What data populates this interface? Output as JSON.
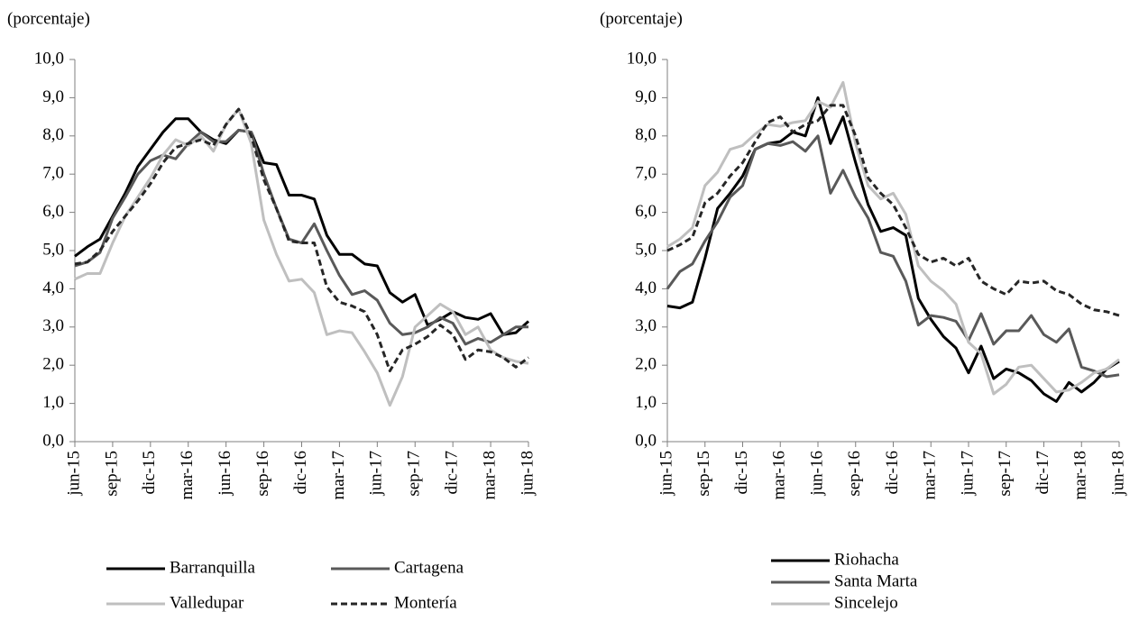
{
  "chart_data": [
    {
      "type": "line",
      "ylabel": "(porcentaje)",
      "categories": [
        "jun-15",
        null,
        null,
        "sep-15",
        null,
        null,
        "dic-15",
        null,
        null,
        "mar-16",
        null,
        null,
        "jun-16",
        null,
        null,
        "sep-16",
        null,
        null,
        "dic-16",
        null,
        null,
        "mar-17",
        null,
        null,
        "jun-17",
        null,
        null,
        "sep-17",
        null,
        null,
        "dic-17",
        null,
        null,
        "mar-18",
        null,
        null,
        "jun-18"
      ],
      "ylim": [
        0,
        10
      ],
      "yticks": [
        {
          "value": 0,
          "label": "0,0"
        },
        {
          "value": 1,
          "label": "1,0"
        },
        {
          "value": 2,
          "label": "2,0"
        },
        {
          "value": 3,
          "label": "3,0"
        },
        {
          "value": 4,
          "label": "4,0"
        },
        {
          "value": 5,
          "label": "5,0"
        },
        {
          "value": 6,
          "label": "6,0"
        },
        {
          "value": 7,
          "label": "7,0"
        },
        {
          "value": 8,
          "label": "8,0"
        },
        {
          "value": 9,
          "label": "9,0"
        },
        {
          "value": 10,
          "label": "10,0"
        }
      ],
      "series": [
        {
          "name": "Barranquilla",
          "color": "#000000",
          "style": "solid",
          "values": [
            4.85,
            5.1,
            5.3,
            5.9,
            6.5,
            7.2,
            7.65,
            8.1,
            8.45,
            8.45,
            8.1,
            7.9,
            7.8,
            8.15,
            8.1,
            7.3,
            7.25,
            6.45,
            6.45,
            6.35,
            5.4,
            4.9,
            4.9,
            4.65,
            4.6,
            3.9,
            3.65,
            3.85,
            3.05,
            3.2,
            3.4,
            3.25,
            3.2,
            3.35,
            2.8,
            2.85,
            3.15
          ]
        },
        {
          "name": "Cartagena",
          "color": "#595959",
          "style": "solid",
          "values": [
            4.6,
            4.7,
            4.95,
            5.85,
            6.4,
            7.0,
            7.35,
            7.5,
            7.4,
            7.8,
            8.1,
            7.85,
            7.85,
            8.15,
            8.1,
            7.0,
            6.1,
            5.3,
            5.2,
            5.7,
            5.0,
            4.35,
            3.85,
            3.95,
            3.7,
            3.1,
            2.8,
            2.85,
            3.0,
            3.25,
            3.1,
            2.55,
            2.7,
            2.6,
            2.8,
            3.0,
            3.0
          ]
        },
        {
          "name": "Valledupar",
          "color": "#bfbfbf",
          "style": "solid",
          "values": [
            4.25,
            4.4,
            4.4,
            5.2,
            5.9,
            6.4,
            6.9,
            7.5,
            7.9,
            7.75,
            8.0,
            7.6,
            8.3,
            8.7,
            7.8,
            5.8,
            4.9,
            4.2,
            4.25,
            3.9,
            2.8,
            2.9,
            2.85,
            2.35,
            1.8,
            0.95,
            1.7,
            3.0,
            3.3,
            3.6,
            3.4,
            2.8,
            3.0,
            2.4,
            2.2,
            2.1,
            2.05
          ]
        },
        {
          "name": "Montería",
          "color": "#262626",
          "style": "dashed",
          "values": [
            4.65,
            4.7,
            5.0,
            5.5,
            5.9,
            6.3,
            6.75,
            7.3,
            7.7,
            7.8,
            7.9,
            7.75,
            8.3,
            8.7,
            8.0,
            6.85,
            6.1,
            5.25,
            5.2,
            5.2,
            4.05,
            3.65,
            3.55,
            3.4,
            2.8,
            1.85,
            2.4,
            2.55,
            2.75,
            3.05,
            2.8,
            2.15,
            2.4,
            2.35,
            2.2,
            1.95,
            2.2
          ]
        }
      ]
    },
    {
      "type": "line",
      "ylabel": "(porcentaje)",
      "categories": [
        "jun-15",
        null,
        null,
        "sep-15",
        null,
        null,
        "dic-15",
        null,
        null,
        "mar-16",
        null,
        null,
        "jun-16",
        null,
        null,
        "sep-16",
        null,
        null,
        "dic-16",
        null,
        null,
        "mar-17",
        null,
        null,
        "jun-17",
        null,
        null,
        "sep-17",
        null,
        null,
        "dic-17",
        null,
        null,
        "mar-18",
        null,
        null,
        "jun-18"
      ],
      "ylim": [
        0,
        10
      ],
      "yticks": [
        {
          "value": 0,
          "label": "0,0"
        },
        {
          "value": 1,
          "label": "1,0"
        },
        {
          "value": 2,
          "label": "2,0"
        },
        {
          "value": 3,
          "label": "3,0"
        },
        {
          "value": 4,
          "label": "4,0"
        },
        {
          "value": 5,
          "label": "5,0"
        },
        {
          "value": 6,
          "label": "6,0"
        },
        {
          "value": 7,
          "label": "7,0"
        },
        {
          "value": 8,
          "label": "8,0"
        },
        {
          "value": 9,
          "label": "9,0"
        },
        {
          "value": 10,
          "label": "10,0"
        }
      ],
      "series": [
        {
          "name": "Riohacha",
          "color": "#000000",
          "style": "solid",
          "values": [
            3.55,
            3.5,
            3.65,
            4.8,
            6.1,
            6.5,
            6.95,
            7.65,
            7.8,
            7.85,
            8.1,
            8.0,
            9.0,
            7.8,
            8.5,
            7.3,
            6.2,
            5.5,
            5.6,
            5.4,
            3.75,
            3.2,
            2.75,
            2.45,
            1.8,
            2.5,
            1.65,
            1.9,
            1.8,
            1.6,
            1.25,
            1.05,
            1.55,
            1.3,
            1.55,
            1.9,
            2.1
          ]
        },
        {
          "name": "Santa Marta",
          "color": "#595959",
          "style": "solid",
          "values": [
            4.0,
            4.45,
            4.65,
            5.25,
            5.75,
            6.4,
            6.7,
            7.65,
            7.8,
            7.75,
            7.85,
            7.6,
            8.0,
            6.5,
            7.1,
            6.4,
            5.85,
            4.95,
            4.85,
            4.2,
            3.05,
            3.3,
            3.25,
            3.15,
            2.65,
            3.35,
            2.55,
            2.9,
            2.9,
            3.3,
            2.8,
            2.6,
            2.95,
            1.95,
            1.85,
            1.7,
            1.75
          ]
        },
        {
          "name": "Sincelejo",
          "color": "#bfbfbf",
          "style": "solid",
          "values": [
            5.1,
            5.3,
            5.6,
            6.7,
            7.05,
            7.65,
            7.75,
            8.05,
            8.3,
            8.25,
            8.35,
            8.4,
            8.9,
            8.75,
            9.4,
            7.8,
            6.7,
            6.35,
            6.5,
            5.95,
            4.6,
            4.2,
            3.95,
            3.6,
            2.6,
            2.3,
            1.25,
            1.5,
            1.95,
            2.0,
            1.65,
            1.3,
            1.35,
            1.55,
            1.8,
            1.9,
            2.15
          ]
        },
        {
          "name": null,
          "color": "#262626",
          "style": "dashed",
          "values": [
            5.0,
            5.15,
            5.35,
            6.25,
            6.5,
            6.95,
            7.3,
            7.85,
            8.35,
            8.5,
            8.1,
            8.3,
            8.4,
            8.8,
            8.8,
            8.0,
            6.9,
            6.5,
            6.2,
            5.6,
            4.9,
            4.7,
            4.8,
            4.6,
            4.8,
            4.2,
            4.0,
            3.85,
            4.2,
            4.15,
            4.2,
            3.95,
            3.85,
            3.6,
            3.45,
            3.4,
            3.3
          ]
        }
      ]
    }
  ]
}
